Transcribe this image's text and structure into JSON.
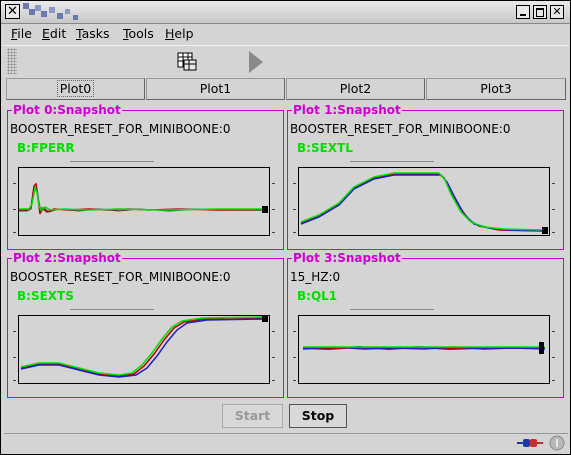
{
  "window": {
    "close_glyph": "✕"
  },
  "menu": [
    "File",
    "Edit",
    "Tasks",
    "Tools",
    "Help"
  ],
  "plot_tabs": [
    {
      "label": "Plot0",
      "active": true
    },
    {
      "label": "Plot1",
      "active": false
    },
    {
      "label": "Plot2",
      "active": false
    },
    {
      "label": "Plot3",
      "active": false
    }
  ],
  "panels": [
    {
      "title": "Plot 0:Snapshot",
      "event": "BOOSTER_RESET_FOR_MINIBOONE:0",
      "device": "B:FPERR"
    },
    {
      "title": "Plot 1:Snapshot",
      "event": "BOOSTER_RESET_FOR_MINIBOONE:0",
      "device": "B:SEXTL"
    },
    {
      "title": "Plot 2:Snapshot",
      "event": "BOOSTER_RESET_FOR_MINIBOONE:0",
      "device": "B:SEXTS"
    },
    {
      "title": "Plot 3:Snapshot",
      "event": "15_HZ:0",
      "device": "B:QL1"
    }
  ],
  "buttons": {
    "start": "Start",
    "stop": "Stop"
  },
  "colors": {
    "accent": "#d000d0",
    "device": "#00e000",
    "trace_main": "#00e000"
  },
  "icons": [
    "table-icon",
    "play-icon",
    "plug-icon",
    "info-icon"
  ]
}
